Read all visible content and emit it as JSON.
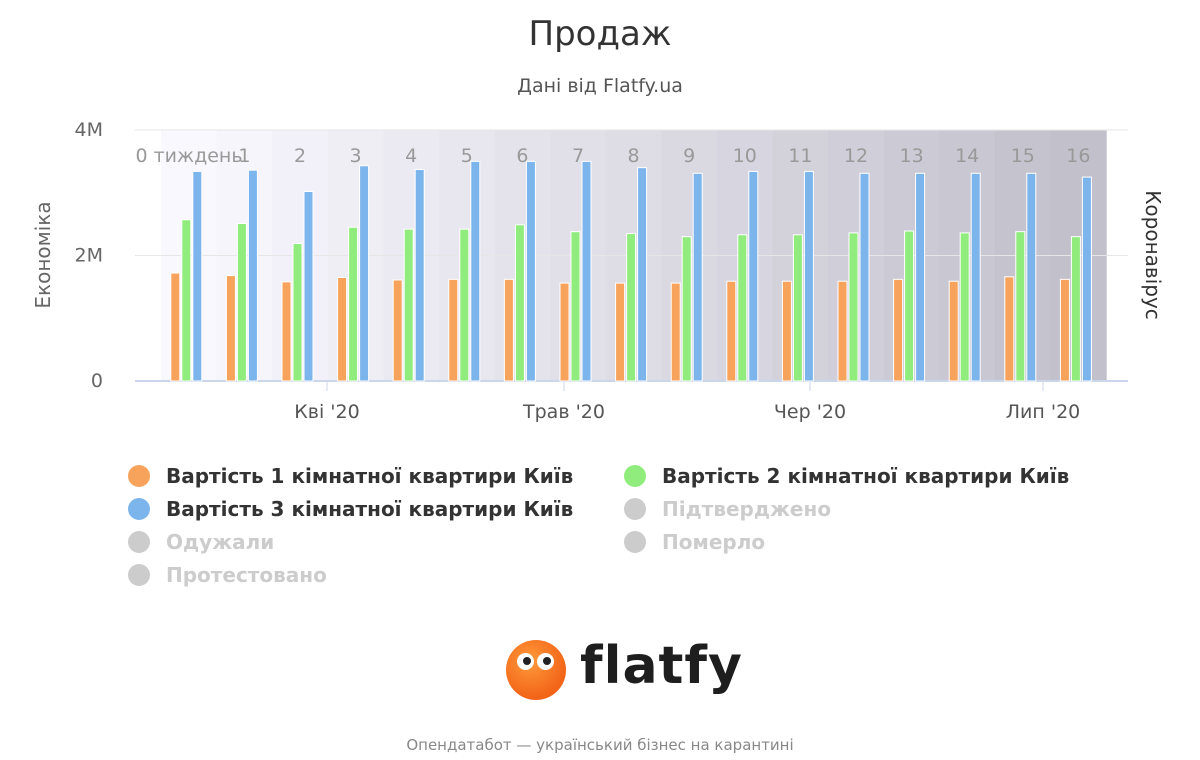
{
  "title": "Продаж",
  "subtitle": "Дані від Flatfy.ua",
  "footer": "Опендатабот — український бізнес на карантині",
  "logo_text": "flatfy",
  "chart_data": {
    "type": "bar",
    "ylabel_left": "Економіка",
    "ylabel_right": "Коронавірус",
    "ylim": [
      0,
      4000000
    ],
    "y_ticks": [
      "0",
      "2M",
      "4M"
    ],
    "x_date_ticks": [
      "Кві '20",
      "Трав '20",
      "Чер '20",
      "Лип '20"
    ],
    "weeks": [
      "0 тиждень",
      "1",
      "2",
      "3",
      "4",
      "5",
      "6",
      "7",
      "8",
      "9",
      "10",
      "11",
      "12",
      "13",
      "14",
      "15",
      "16"
    ],
    "grid": true,
    "series": [
      {
        "name": "Вартість 1 кімнатної квартири Київ",
        "color": "#f7a35c",
        "visible": true,
        "values": [
          1720000,
          1680000,
          1580000,
          1650000,
          1610000,
          1620000,
          1620000,
          1560000,
          1560000,
          1560000,
          1590000,
          1590000,
          1590000,
          1620000,
          1590000,
          1660000,
          1620000
        ]
      },
      {
        "name": "Вартість 2 кімнатної квартири Київ",
        "color": "#90ed7d",
        "visible": true,
        "values": [
          2570000,
          2510000,
          2190000,
          2450000,
          2420000,
          2420000,
          2490000,
          2380000,
          2350000,
          2300000,
          2330000,
          2330000,
          2360000,
          2390000,
          2360000,
          2380000,
          2300000
        ]
      },
      {
        "name": "Вартість 3 кімнатної квартири Київ",
        "color": "#7cb5ec",
        "visible": true,
        "values": [
          3340000,
          3360000,
          3020000,
          3430000,
          3370000,
          3500000,
          3500000,
          3500000,
          3400000,
          3310000,
          3340000,
          3340000,
          3310000,
          3310000,
          3310000,
          3310000,
          3250000
        ]
      },
      {
        "name": "Підтверджено",
        "color": "#cccccc",
        "visible": false,
        "values": []
      },
      {
        "name": "Одужали",
        "color": "#cccccc",
        "visible": false,
        "values": []
      },
      {
        "name": "Померло",
        "color": "#cccccc",
        "visible": false,
        "values": []
      },
      {
        "name": "Протестовано",
        "color": "#cccccc",
        "visible": false,
        "values": []
      }
    ]
  }
}
